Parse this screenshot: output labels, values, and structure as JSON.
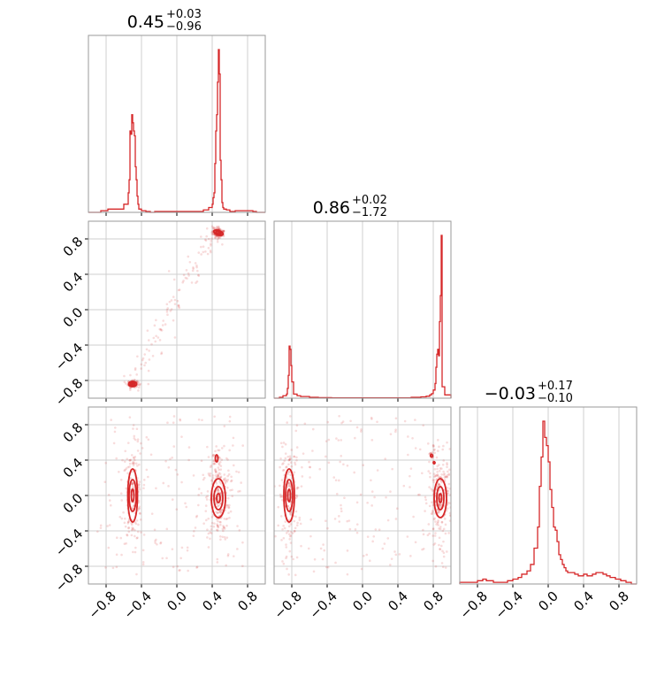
{
  "chart_data": {
    "type": "corner",
    "color": "#d62728",
    "grid": true,
    "axis_range": [
      -1,
      1
    ],
    "tick_labels": [
      "−0.8",
      "−0.4",
      "0.0",
      "0.4",
      "0.8"
    ],
    "tick_values": [
      -0.8,
      -0.4,
      0.0,
      0.4,
      0.8
    ],
    "params": [
      {
        "median": "0.45",
        "plus": "+0.03",
        "minus": "−0.96"
      },
      {
        "median": "0.86",
        "plus": "+0.02",
        "minus": "−1.72"
      },
      {
        "median": "−0.03",
        "plus": "+0.17",
        "minus": "−0.10"
      }
    ],
    "marginals": [
      {
        "type": "histogram",
        "edges": [
          -1.0,
          -0.86,
          -0.78,
          -0.6,
          -0.55,
          -0.54,
          -0.53,
          -0.52,
          -0.51,
          -0.5,
          -0.49,
          -0.48,
          -0.47,
          -0.46,
          -0.45,
          -0.44,
          -0.43,
          -0.4,
          -0.35,
          -0.3,
          -0.25,
          0.3,
          0.36,
          0.4,
          0.41,
          0.42,
          0.43,
          0.44,
          0.45,
          0.46,
          0.47,
          0.48,
          0.49,
          0.5,
          0.51,
          0.52,
          0.53,
          0.56,
          0.6,
          0.66,
          0.86,
          0.9,
          1.0
        ],
        "heights": [
          0,
          0.01,
          0.02,
          0.05,
          0.12,
          0.2,
          0.5,
          0.48,
          0.6,
          0.55,
          0.5,
          0.47,
          0.28,
          0.2,
          0.1,
          0.05,
          0.02,
          0.01,
          0.005,
          0,
          0.005,
          0.015,
          0.03,
          0.05,
          0.09,
          0.12,
          0.3,
          0.5,
          0.6,
          0.8,
          1.0,
          0.85,
          0.32,
          0.2,
          0.06,
          0.03,
          0.02,
          0.015,
          0.005,
          0.01,
          0.005,
          0
        ]
      },
      {
        "type": "histogram",
        "edges": [
          -1.0,
          -0.94,
          -0.9,
          -0.86,
          -0.85,
          -0.84,
          -0.83,
          -0.82,
          -0.81,
          -0.8,
          -0.78,
          -0.74,
          -0.7,
          -0.6,
          -0.5,
          -0.35,
          0.28,
          0.55,
          0.66,
          0.72,
          0.76,
          0.78,
          0.8,
          0.82,
          0.83,
          0.84,
          0.85,
          0.86,
          0.87,
          0.88,
          0.89,
          0.9,
          0.93,
          1.0
        ],
        "heights": [
          0,
          0.005,
          0.015,
          0.025,
          0.06,
          0.14,
          0.32,
          0.3,
          0.2,
          0.1,
          0.025,
          0.015,
          0.01,
          0.005,
          0.003,
          0.002,
          0.002,
          0.005,
          0.008,
          0.012,
          0.02,
          0.028,
          0.05,
          0.09,
          0.19,
          0.27,
          0.3,
          0.26,
          0.47,
          0.63,
          1.0,
          0.07,
          0.02,
          0
        ]
      },
      {
        "type": "histogram",
        "edges": [
          -1.0,
          -0.8,
          -0.74,
          -0.7,
          -0.62,
          -0.6,
          -0.46,
          -0.4,
          -0.34,
          -0.3,
          -0.24,
          -0.2,
          -0.16,
          -0.12,
          -0.1,
          -0.08,
          -0.06,
          -0.04,
          -0.02,
          0.0,
          0.02,
          0.04,
          0.06,
          0.08,
          0.1,
          0.12,
          0.14,
          0.16,
          0.18,
          0.2,
          0.22,
          0.26,
          0.3,
          0.34,
          0.4,
          0.44,
          0.5,
          0.54,
          0.58,
          0.62,
          0.66,
          0.7,
          0.76,
          0.82,
          0.88,
          0.94,
          1.0
        ],
        "heights": [
          0.01,
          0.02,
          0.03,
          0.02,
          0.01,
          0.01,
          0.02,
          0.03,
          0.04,
          0.06,
          0.08,
          0.12,
          0.22,
          0.35,
          0.6,
          0.78,
          1.0,
          0.9,
          0.85,
          0.75,
          0.58,
          0.47,
          0.35,
          0.33,
          0.26,
          0.18,
          0.15,
          0.12,
          0.1,
          0.08,
          0.07,
          0.07,
          0.06,
          0.05,
          0.06,
          0.05,
          0.06,
          0.07,
          0.07,
          0.06,
          0.05,
          0.04,
          0.03,
          0.02,
          0.01,
          0.0
        ]
      }
    ],
    "scatter": [
      {
        "row": 1,
        "col": 0,
        "x_param": 0,
        "y_param": 1,
        "modes": [
          {
            "x": 0.47,
            "y": 0.87,
            "sx": 0.015,
            "sy": 0.012,
            "count": 160,
            "angle": -20
          },
          {
            "x": -0.5,
            "y": -0.84,
            "sx": 0.012,
            "sy": 0.009,
            "count": 120,
            "angle": 0
          }
        ],
        "arc": {
          "count": 120,
          "jitter": 0.06
        },
        "contours": [
          {
            "cx": 0.47,
            "cy": 0.87,
            "rx": 0.055,
            "ry": 0.025,
            "angle": -20
          },
          {
            "cx": 0.47,
            "cy": 0.87,
            "rx": 0.03,
            "ry": 0.013,
            "angle": -20
          },
          {
            "cx": -0.5,
            "cy": -0.84,
            "rx": 0.045,
            "ry": 0.03,
            "angle": 0
          },
          {
            "cx": -0.5,
            "cy": -0.84,
            "rx": 0.025,
            "ry": 0.017,
            "angle": 0
          }
        ]
      },
      {
        "row": 2,
        "col": 0,
        "x_param": 0,
        "y_param": 2,
        "modes": [
          {
            "x": -0.5,
            "y": 0.0,
            "sx": 0.025,
            "sy": 0.12,
            "count": 160,
            "angle": 0
          },
          {
            "x": 0.47,
            "y": -0.03,
            "sx": 0.03,
            "sy": 0.11,
            "count": 220,
            "angle": 0
          },
          {
            "x": 0.45,
            "y": 0.42,
            "sx": 0.01,
            "sy": 0.03,
            "count": 20,
            "angle": 0
          }
        ],
        "background": [
          {
            "xmin": -0.9,
            "xmax": 0.75,
            "ymin": -0.9,
            "ymax": 0.9,
            "count": 160
          }
        ],
        "contours": [
          {
            "cx": -0.5,
            "cy": 0.0,
            "rx": 0.055,
            "ry": 0.3,
            "angle": 0
          },
          {
            "cx": -0.5,
            "cy": 0.0,
            "rx": 0.04,
            "ry": 0.18,
            "angle": 0
          },
          {
            "cx": -0.5,
            "cy": 0.0,
            "rx": 0.015,
            "ry": 0.07,
            "angle": 0
          },
          {
            "cx": 0.47,
            "cy": -0.03,
            "rx": 0.08,
            "ry": 0.22,
            "angle": 0
          },
          {
            "cx": 0.47,
            "cy": -0.03,
            "rx": 0.05,
            "ry": 0.13,
            "angle": 0
          },
          {
            "cx": 0.47,
            "cy": -0.03,
            "rx": 0.02,
            "ry": 0.05,
            "angle": 0
          },
          {
            "cx": 0.45,
            "cy": 0.42,
            "rx": 0.015,
            "ry": 0.04,
            "angle": 0
          }
        ]
      },
      {
        "row": 2,
        "col": 1,
        "x_param": 1,
        "y_param": 2,
        "modes": [
          {
            "x": -0.83,
            "y": 0.0,
            "sx": 0.025,
            "sy": 0.12,
            "count": 160,
            "angle": 0
          },
          {
            "x": 0.88,
            "y": -0.03,
            "sx": 0.03,
            "sy": 0.11,
            "count": 220,
            "angle": 0
          },
          {
            "x": 0.78,
            "y": 0.44,
            "sx": 0.01,
            "sy": 0.02,
            "count": 20,
            "angle": 0
          }
        ],
        "background": [
          {
            "xmin": -0.9,
            "xmax": 0.95,
            "ymin": -0.9,
            "ymax": 0.9,
            "count": 180
          }
        ],
        "contours": [
          {
            "cx": -0.83,
            "cy": 0.0,
            "rx": 0.06,
            "ry": 0.3,
            "angle": 0
          },
          {
            "cx": -0.83,
            "cy": 0.0,
            "rx": 0.04,
            "ry": 0.18,
            "angle": 0
          },
          {
            "cx": -0.83,
            "cy": 0.0,
            "rx": 0.015,
            "ry": 0.07,
            "angle": 0
          },
          {
            "cx": 0.88,
            "cy": -0.03,
            "rx": 0.07,
            "ry": 0.22,
            "angle": 0
          },
          {
            "cx": 0.88,
            "cy": -0.03,
            "rx": 0.04,
            "ry": 0.13,
            "angle": 0
          },
          {
            "cx": 0.88,
            "cy": -0.03,
            "rx": 0.015,
            "ry": 0.05,
            "angle": 0
          },
          {
            "cx": 0.78,
            "cy": 0.45,
            "rx": 0.012,
            "ry": 0.015,
            "angle": 0
          },
          {
            "cx": 0.81,
            "cy": 0.37,
            "rx": 0.01,
            "ry": 0.012,
            "angle": 0
          }
        ]
      }
    ]
  }
}
